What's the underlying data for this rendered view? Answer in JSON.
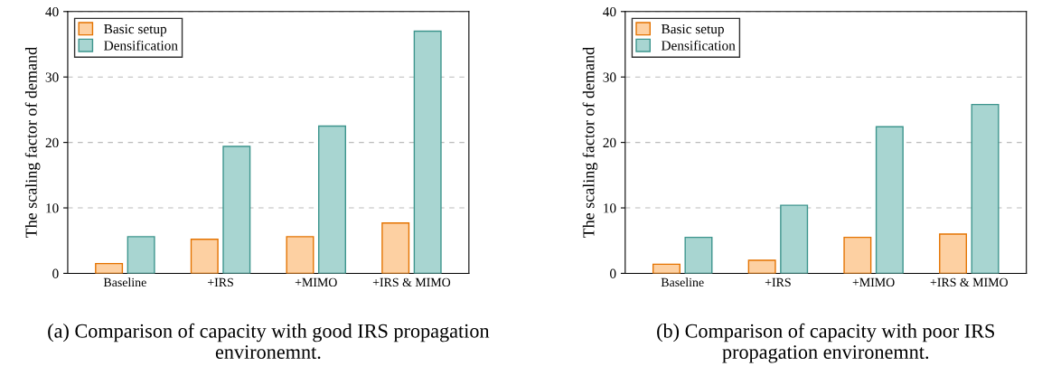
{
  "chart_data": [
    {
      "type": "bar",
      "categories": [
        "Baseline",
        "+IRS",
        "+MIMO",
        "+IRS & MIMO"
      ],
      "ylabel": "The scaling factor of demand",
      "ylim": [
        0,
        40
      ],
      "yticks": [
        0,
        10,
        20,
        30,
        40
      ],
      "grid": "y",
      "legend": "top left",
      "series": [
        {
          "name": "Basic setup",
          "color": "#fdd0a2",
          "values": [
            1.5,
            5.2,
            5.6,
            7.7
          ]
        },
        {
          "name": "Densification",
          "color": "#a8d5d1",
          "values": [
            5.6,
            19.4,
            22.5,
            37.0
          ]
        }
      ],
      "annotations": [
        "(a) Comparison of capacity with good IRS propagation environemnt."
      ]
    },
    {
      "type": "bar",
      "categories": [
        "Baseline",
        "+IRS",
        "+MIMO",
        "+IRS & MIMO"
      ],
      "ylabel": "The scaling factor of demand",
      "ylim": [
        0,
        40
      ],
      "yticks": [
        0,
        10,
        20,
        30,
        40
      ],
      "grid": "y",
      "legend": "top left",
      "series": [
        {
          "name": "Basic setup",
          "color": "#fdd0a2",
          "values": [
            1.4,
            2.0,
            5.5,
            6.0
          ]
        },
        {
          "name": "Densification",
          "color": "#a8d5d1",
          "values": [
            5.5,
            10.4,
            22.4,
            25.8
          ]
        }
      ],
      "annotations": [
        "(b) Comparison of capacity with poor IRS propagation environemnt."
      ]
    }
  ]
}
